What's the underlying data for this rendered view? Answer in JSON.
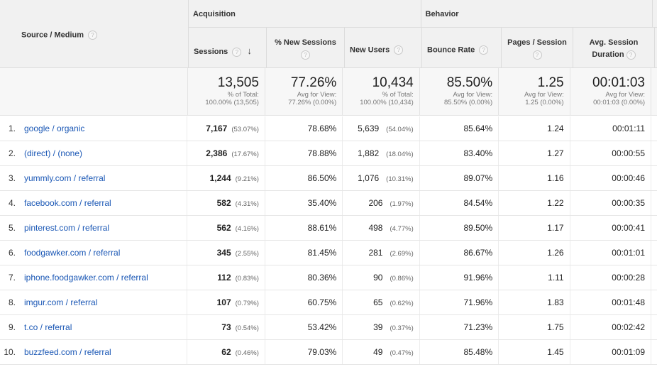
{
  "header": {
    "source_medium": "Source / Medium",
    "acquisition": "Acquisition",
    "behavior": "Behavior",
    "columns": {
      "sessions": "Sessions",
      "new_sessions": "% New Sessions",
      "new_users": "New Users",
      "bounce_rate": "Bounce Rate",
      "pages_per_session": "Pages / Session",
      "avg_session_duration": "Avg. Session Duration"
    },
    "help_icon": "question-mark-circle-icon",
    "sort_icon": "arrow-down-icon"
  },
  "totals": {
    "sessions": {
      "value": "13,505",
      "sub1": "% of Total:",
      "sub2": "100.00% (13,505)"
    },
    "new_sessions": {
      "value": "77.26%",
      "sub1": "Avg for View:",
      "sub2": "77.26% (0.00%)"
    },
    "new_users": {
      "value": "10,434",
      "sub1": "% of Total:",
      "sub2": "100.00% (10,434)"
    },
    "bounce_rate": {
      "value": "85.50%",
      "sub1": "Avg for View:",
      "sub2": "85.50% (0.00%)"
    },
    "pages_per_session": {
      "value": "1.25",
      "sub1": "Avg for View:",
      "sub2": "1.25 (0.00%)"
    },
    "avg_session_duration": {
      "value": "00:01:03",
      "sub1": "Avg for View:",
      "sub2": "00:01:03 (0.00%)"
    }
  },
  "rows": [
    {
      "rank": "1.",
      "source": "google / organic",
      "sessions": "7,167",
      "sessions_pct": "(53.07%)",
      "new_sessions": "78.68%",
      "new_users": "5,639",
      "new_users_pct": "(54.04%)",
      "bounce_rate": "85.64%",
      "pages_per_session": "1.24",
      "duration": "00:01:11"
    },
    {
      "rank": "2.",
      "source": "(direct) / (none)",
      "sessions": "2,386",
      "sessions_pct": "(17.67%)",
      "new_sessions": "78.88%",
      "new_users": "1,882",
      "new_users_pct": "(18.04%)",
      "bounce_rate": "83.40%",
      "pages_per_session": "1.27",
      "duration": "00:00:55"
    },
    {
      "rank": "3.",
      "source": "yummly.com / referral",
      "sessions": "1,244",
      "sessions_pct": "(9.21%)",
      "new_sessions": "86.50%",
      "new_users": "1,076",
      "new_users_pct": "(10.31%)",
      "bounce_rate": "89.07%",
      "pages_per_session": "1.16",
      "duration": "00:00:46"
    },
    {
      "rank": "4.",
      "source": "facebook.com / referral",
      "sessions": "582",
      "sessions_pct": "(4.31%)",
      "new_sessions": "35.40%",
      "new_users": "206",
      "new_users_pct": "(1.97%)",
      "bounce_rate": "84.54%",
      "pages_per_session": "1.22",
      "duration": "00:00:35"
    },
    {
      "rank": "5.",
      "source": "pinterest.com / referral",
      "sessions": "562",
      "sessions_pct": "(4.16%)",
      "new_sessions": "88.61%",
      "new_users": "498",
      "new_users_pct": "(4.77%)",
      "bounce_rate": "89.50%",
      "pages_per_session": "1.17",
      "duration": "00:00:41"
    },
    {
      "rank": "6.",
      "source": "foodgawker.com / referral",
      "sessions": "345",
      "sessions_pct": "(2.55%)",
      "new_sessions": "81.45%",
      "new_users": "281",
      "new_users_pct": "(2.69%)",
      "bounce_rate": "86.67%",
      "pages_per_session": "1.26",
      "duration": "00:01:01"
    },
    {
      "rank": "7.",
      "source": "iphone.foodgawker.com / referral",
      "sessions": "112",
      "sessions_pct": "(0.83%)",
      "new_sessions": "80.36%",
      "new_users": "90",
      "new_users_pct": "(0.86%)",
      "bounce_rate": "91.96%",
      "pages_per_session": "1.11",
      "duration": "00:00:28"
    },
    {
      "rank": "8.",
      "source": "imgur.com / referral",
      "sessions": "107",
      "sessions_pct": "(0.79%)",
      "new_sessions": "60.75%",
      "new_users": "65",
      "new_users_pct": "(0.62%)",
      "bounce_rate": "71.96%",
      "pages_per_session": "1.83",
      "duration": "00:01:48"
    },
    {
      "rank": "9.",
      "source": "t.co / referral",
      "sessions": "73",
      "sessions_pct": "(0.54%)",
      "new_sessions": "53.42%",
      "new_users": "39",
      "new_users_pct": "(0.37%)",
      "bounce_rate": "71.23%",
      "pages_per_session": "1.75",
      "duration": "00:02:42"
    },
    {
      "rank": "10.",
      "source": "buzzfeed.com / referral",
      "sessions": "62",
      "sessions_pct": "(0.46%)",
      "new_sessions": "79.03%",
      "new_users": "49",
      "new_users_pct": "(0.47%)",
      "bounce_rate": "85.48%",
      "pages_per_session": "1.45",
      "duration": "00:01:09"
    }
  ]
}
